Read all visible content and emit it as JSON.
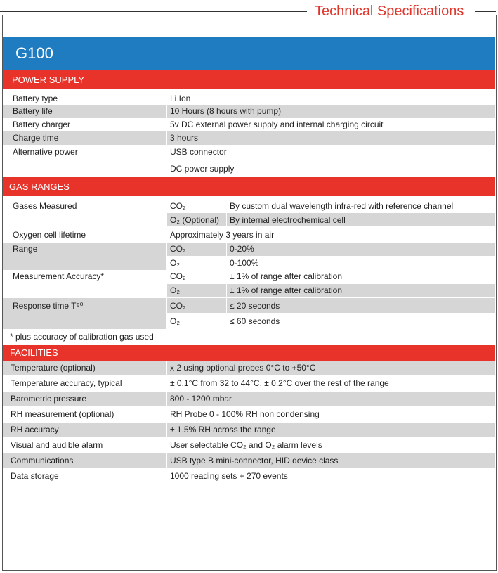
{
  "header": {
    "title": "Technical Specifications"
  },
  "product": "G100",
  "power_supply": {
    "title": "POWER SUPPLY",
    "rows": [
      [
        "Battery type",
        "Li Ion"
      ],
      [
        "Battery life",
        "10 Hours (8 hours with pump)"
      ],
      [
        "Battery charger",
        "5v DC external power supply and internal charging circuit"
      ],
      [
        "Charge time",
        "3 hours"
      ],
      [
        "Alternative power",
        "USB connector",
        "DC power supply"
      ]
    ]
  },
  "gas_ranges": {
    "title": "GAS RANGES",
    "rows": [
      {
        "label": "Gases Measured",
        "items": [
          [
            "CO₂",
            "By custom dual wavelength infra-red with reference channel"
          ],
          [
            "O₂ (Optional)",
            "By internal electrochemical cell"
          ]
        ]
      },
      {
        "label": "Oxygen cell lifetime",
        "value": "Approximately 3 years in air"
      },
      {
        "label": "Range",
        "items": [
          [
            "CO₂",
            "0-20%"
          ],
          [
            "O₂",
            "0-100%"
          ]
        ]
      },
      {
        "label": "Measurement Accuracy*",
        "items": [
          [
            "CO₂",
            "± 1% of range after calibration"
          ],
          [
            "O₂",
            "± 1% of range after calibration"
          ]
        ]
      },
      {
        "label": "Response time T⁹⁰",
        "items": [
          [
            "CO₂",
            "≤ 20 seconds"
          ],
          [
            "O₂",
            "≤ 60 seconds"
          ]
        ]
      }
    ],
    "note": "* plus accuracy of calibration gas used"
  },
  "facilities": {
    "title": "FACILITIES",
    "rows": [
      [
        "Temperature (optional)",
        "x 2 using optional probes 0°C to +50°C"
      ],
      [
        "Temperature accuracy, typical",
        "± 0.1°C from 32 to 44°C, ± 0.2°C over the rest of the range"
      ],
      [
        "Barometric pressure",
        "800 - 1200 mbar"
      ],
      [
        "RH measurement (optional)",
        "RH Probe 0 - 100% RH non condensing"
      ],
      [
        "RH accuracy",
        "± 1.5% RH across the range"
      ],
      [
        "Visual and audible alarm",
        "User selectable CO₂ and O₂ alarm levels"
      ],
      [
        "Communications",
        "USB type B mini-connector, HID device class"
      ],
      [
        "Data storage",
        "1000 reading sets + 270 events"
      ]
    ]
  }
}
